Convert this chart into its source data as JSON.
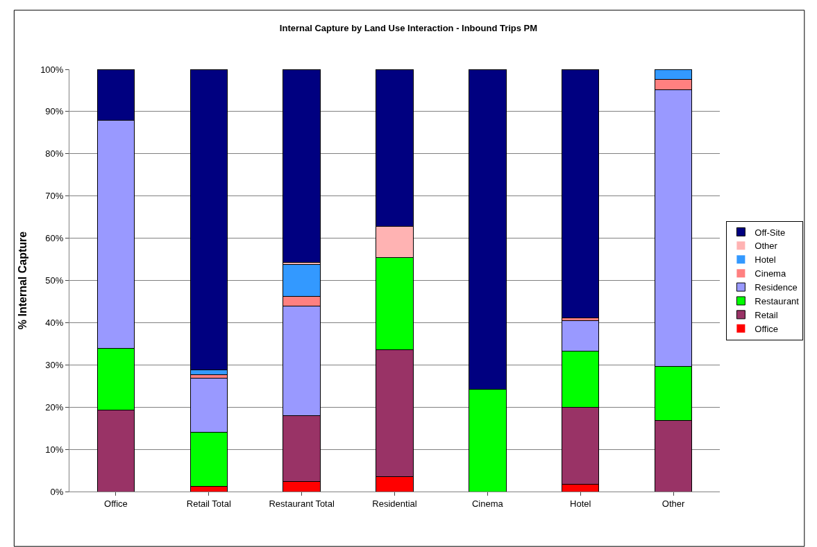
{
  "chart_data": {
    "type": "bar",
    "stacked": true,
    "title": "Internal Capture by Land Use Interaction - Inbound Trips PM",
    "ylabel": "% Internal Capture",
    "categories": [
      "Office",
      "Retail Total",
      "Restaurant Total",
      "Residential",
      "Cinema",
      "Hotel",
      "Other"
    ],
    "series": [
      {
        "name": "Office",
        "color": "#ff0000",
        "values": [
          0,
          1.3,
          2.3,
          3.6,
          0,
          1.8,
          0
        ]
      },
      {
        "name": "Retail",
        "color": "#993366",
        "values": [
          19.3,
          0,
          15.6,
          30.0,
          0,
          18.2,
          16.9
        ]
      },
      {
        "name": "Restaurant",
        "color": "#00ff00",
        "values": [
          14.6,
          12.8,
          0,
          21.9,
          24.3,
          13.3,
          12.8
        ]
      },
      {
        "name": "Residence",
        "color": "#9999ff",
        "values": [
          54.1,
          12.8,
          26.0,
          0,
          0,
          7.2,
          65.5
        ]
      },
      {
        "name": "Cinema",
        "color": "#ff8080",
        "values": [
          0,
          0.8,
          2.3,
          0,
          0,
          0.6,
          2.5
        ]
      },
      {
        "name": "Hotel",
        "color": "#3399ff",
        "values": [
          0,
          1.2,
          7.5,
          0,
          0,
          0,
          2.3
        ]
      },
      {
        "name": "Other",
        "color": "#ffb3b3",
        "values": [
          0,
          0,
          0.6,
          7.3,
          0,
          0,
          0
        ]
      },
      {
        "name": "Off-Site",
        "color": "#000080",
        "values": [
          12.0,
          71.1,
          45.7,
          37.2,
          75.7,
          58.9,
          0
        ]
      }
    ],
    "ylim": [
      0,
      100
    ],
    "yticks": [
      {
        "value": 0,
        "label": "0%"
      },
      {
        "value": 10,
        "label": "10%"
      },
      {
        "value": 20,
        "label": "20%"
      },
      {
        "value": 30,
        "label": "30%"
      },
      {
        "value": 40,
        "label": "40%"
      },
      {
        "value": 50,
        "label": "50%"
      },
      {
        "value": 60,
        "label": "60%"
      },
      {
        "value": 70,
        "label": "70%"
      },
      {
        "value": 80,
        "label": "80%"
      },
      {
        "value": 90,
        "label": "90%"
      },
      {
        "value": 100,
        "label": "100%"
      }
    ],
    "grid": "y",
    "legend": "right"
  }
}
